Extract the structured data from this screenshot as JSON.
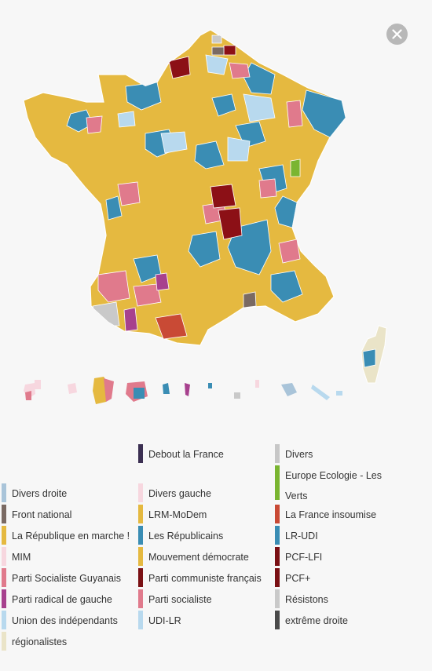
{
  "close_icon": "close-icon",
  "colors": {
    "lrm": "#e5b940",
    "lr": "#3a8db4",
    "ps": "#e07a8c",
    "pcf": "#8c1016",
    "udi": "#b8d9ee",
    "divers": "#c9c9c9",
    "fi": "#c94a35",
    "ecolo": "#7ab531",
    "regio": "#eae4c8"
  },
  "legend": [
    {
      "label": "Debout la France",
      "color": "#3b2f52"
    },
    {
      "label": "Divers",
      "color": "#c7c7c7"
    },
    {
      "label": "Divers droite",
      "color": "#a9c4d9"
    },
    {
      "label": "Divers gauche",
      "color": "#f7d7df"
    },
    {
      "label": "Europe Ecologie - Les Verts",
      "color": "#7ab531"
    },
    {
      "label": "Front national",
      "color": "#7a6a63"
    },
    {
      "label": "LRM-MoDem",
      "color": "#e5b940"
    },
    {
      "label": "La France insoumise",
      "color": "#c94a35"
    },
    {
      "label": "La République en marche !",
      "color": "#e5b940"
    },
    {
      "label": "Les Républicains",
      "color": "#3a8db4"
    },
    {
      "label": "LR-UDI",
      "color": "#3a8db4"
    },
    {
      "label": "MIM",
      "color": "#f7d7df"
    },
    {
      "label": "Mouvement démocrate",
      "color": "#e5b940"
    },
    {
      "label": "PCF-LFI",
      "color": "#7a1014"
    },
    {
      "label": "Parti Socialiste Guyanais",
      "color": "#e07a8c"
    },
    {
      "label": "Parti communiste français",
      "color": "#7a1014"
    },
    {
      "label": "PCF+",
      "color": "#7a1014"
    },
    {
      "label": "Parti radical de gauche",
      "color": "#a7418e"
    },
    {
      "label": "Parti socialiste",
      "color": "#e07a8c"
    },
    {
      "label": "Résistons",
      "color": "#c9c9c9"
    },
    {
      "label": "Union des indépendants",
      "color": "#b8d9ee"
    },
    {
      "label": "UDI-LR",
      "color": "#b8d9ee"
    },
    {
      "label": "extrême droite",
      "color": "#4a4a4a"
    },
    {
      "label": "régionalistes",
      "color": "#eae4c8"
    }
  ]
}
